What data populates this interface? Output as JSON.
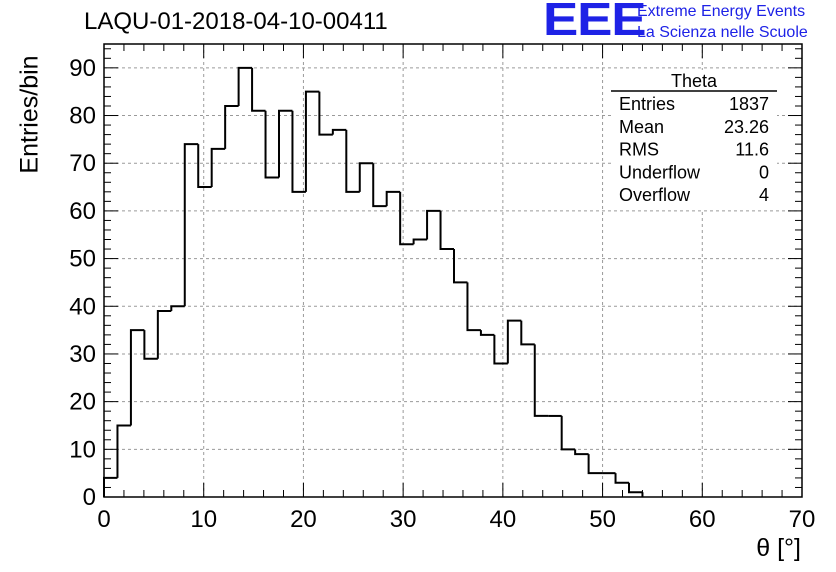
{
  "header": {
    "title": "LAQU-01-2018-04-10-00411",
    "logo_text": "EEE",
    "logo_line1": "Extreme Energy Events",
    "logo_line2": "La Scienza nelle Scuole",
    "logo_color": "#1e22e6"
  },
  "stats": {
    "name": "Theta",
    "rows": [
      {
        "label": "Entries",
        "value": "1837"
      },
      {
        "label": "Mean",
        "value": "23.26"
      },
      {
        "label": "RMS",
        "value": "11.6"
      },
      {
        "label": "Underflow",
        "value": "0"
      },
      {
        "label": "Overflow",
        "value": "4"
      }
    ]
  },
  "chart_data": {
    "type": "histogram",
    "title": "LAQU-01-2018-04-10-00411",
    "xlabel": "θ [°]",
    "ylabel": "Entries/bin",
    "xlim": [
      0,
      70
    ],
    "ylim": [
      0,
      95
    ],
    "grid": true,
    "bin_width": 1.35,
    "bin_start": 0,
    "values": [
      4,
      15,
      35,
      29,
      39,
      40,
      74,
      65,
      73,
      82,
      90,
      81,
      67,
      81,
      64,
      85,
      76,
      77,
      64,
      70,
      61,
      64,
      53,
      54,
      60,
      52,
      45,
      35,
      34,
      28,
      37,
      32,
      17,
      17,
      10,
      9,
      5,
      5,
      3,
      1
    ],
    "x_ticks": [
      0,
      10,
      20,
      30,
      40,
      50,
      60,
      70
    ],
    "y_ticks": [
      0,
      10,
      20,
      30,
      40,
      50,
      60,
      70,
      80,
      90
    ],
    "x_tick_labels": [
      "0",
      "10",
      "20",
      "30",
      "40",
      "50",
      "60",
      "70"
    ],
    "y_tick_labels": [
      "0",
      "10",
      "20",
      "30",
      "40",
      "50",
      "60",
      "70",
      "80",
      "90"
    ]
  }
}
